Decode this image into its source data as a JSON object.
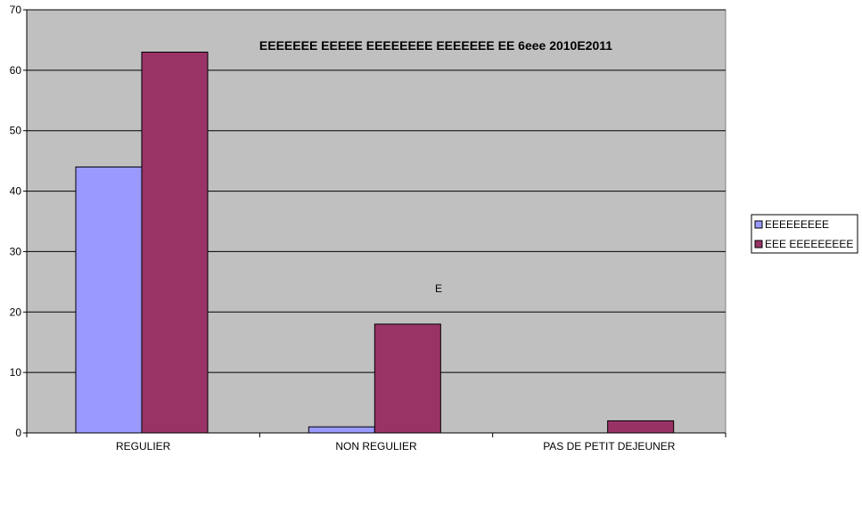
{
  "chart_data": {
    "type": "bar",
    "title": "EEEEEEE EEEEE EEEEEEEE EEEEEEE EE 6eee 2010E2011",
    "annotation": "E",
    "categories": [
      "REGULIER",
      "NON REGULIER",
      "PAS DE PETIT DEJEUNER"
    ],
    "series": [
      {
        "name": "EEEEEEEEE",
        "values": [
          44,
          1,
          0
        ],
        "color": "#9999ff"
      },
      {
        "name": "EEE EEEEEEEEE",
        "values": [
          63,
          18,
          2
        ],
        "color": "#993366"
      }
    ],
    "ylim": [
      0,
      70
    ],
    "yticks": [
      0,
      10,
      20,
      30,
      40,
      50,
      60,
      70
    ],
    "grid": true,
    "legend": "right",
    "plot_background": "#c0c0c0"
  }
}
